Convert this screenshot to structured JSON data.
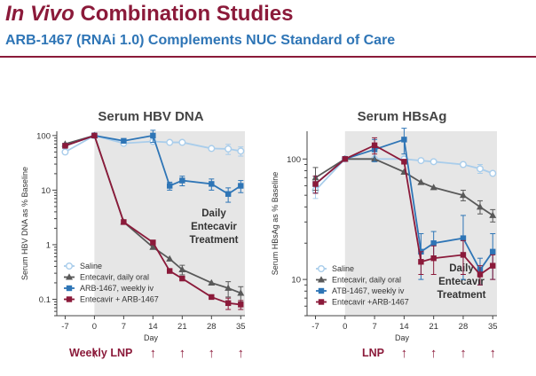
{
  "header": {
    "title_italic": "In Vivo",
    "title_rest": " Combination Studies",
    "subtitle": "ARB-1467 (RNAi 1.0) Complements NUC Standard of Care"
  },
  "colors": {
    "title": "#8B1A3A",
    "subtitle": "#2E75B6",
    "saline": "#A9CDEB",
    "entecavir": "#595959",
    "arb": "#2E75B6",
    "combo": "#8B1A3A",
    "treatment_shade": "#E6E6E6"
  },
  "dosing": [
    {
      "label": "Weekly LNP",
      "arrow": "↑",
      "days": [
        0,
        14,
        21,
        28,
        35
      ]
    },
    {
      "label": "LNP",
      "arrow": "↑",
      "days": [
        14,
        21,
        28,
        35
      ]
    }
  ],
  "chart_data": [
    {
      "type": "line",
      "title": "Serum HBV DNA",
      "xlabel": "Day",
      "ylabel": "Serum HBV DNA as % Baseline",
      "x_ticks": [
        -7,
        0,
        7,
        14,
        21,
        28,
        35
      ],
      "xlim": [
        -9,
        36
      ],
      "y_scale": "log",
      "y_ticks": [
        0.1,
        1,
        10,
        100
      ],
      "y_tick_labels": [
        "0.1",
        "1",
        "10",
        "100"
      ],
      "ylim": [
        0.05,
        120
      ],
      "shaded_region": {
        "x_from": 0,
        "x_to": 36
      },
      "annotation": [
        "Daily",
        "Entecavir",
        "Treatment"
      ],
      "legend": "bottom-left",
      "series": [
        {
          "name": "Saline",
          "color_key": "saline",
          "marker": "circle-open",
          "x": [
            -7,
            0,
            7,
            14,
            18,
            21,
            28,
            32,
            35
          ],
          "y": [
            50,
            100,
            72,
            78,
            75,
            75,
            58,
            57,
            52
          ],
          "err": [
            0,
            0,
            0,
            0,
            0,
            0,
            0,
            12,
            10
          ]
        },
        {
          "name": "Entecavir, daily oral",
          "color_key": "entecavir",
          "marker": "triangle",
          "x": [
            -7,
            0,
            7,
            14,
            18,
            21,
            28,
            32,
            35
          ],
          "y": [
            70,
            100,
            2.6,
            0.9,
            0.55,
            0.35,
            0.2,
            0.16,
            0.13
          ],
          "err": [
            0,
            0,
            0,
            0,
            0,
            0.07,
            0,
            0.05,
            0.04
          ]
        },
        {
          "name": "ARB-1467, weekly iv",
          "color_key": "arb",
          "marker": "square",
          "x": [
            -7,
            0,
            7,
            14,
            18,
            21,
            28,
            32,
            35
          ],
          "y": [
            65,
            100,
            80,
            100,
            12,
            15,
            13,
            8.5,
            12
          ],
          "err": [
            0,
            0,
            0,
            25,
            2,
            3,
            3,
            2.5,
            3
          ]
        },
        {
          "name": "Entecavir + ARB-1467",
          "color_key": "combo",
          "marker": "square",
          "x": [
            -7,
            0,
            7,
            14,
            18,
            21,
            28,
            32,
            35
          ],
          "y": [
            65,
            100,
            2.6,
            1.1,
            0.33,
            0.24,
            0.11,
            0.085,
            0.08
          ],
          "err": [
            0,
            0,
            0,
            0,
            0,
            0,
            0,
            0.02,
            0.015
          ]
        }
      ]
    },
    {
      "type": "line",
      "title": "Serum HBsAg",
      "xlabel": "Day",
      "ylabel": "Serum HBsAg as % Baseline",
      "x_ticks": [
        -7,
        0,
        7,
        14,
        21,
        28,
        35
      ],
      "xlim": [
        -9,
        36
      ],
      "y_scale": "log",
      "y_ticks": [
        10,
        100
      ],
      "y_tick_labels": [
        "10",
        "100"
      ],
      "ylim": [
        5,
        170
      ],
      "shaded_region": {
        "x_from": 0,
        "x_to": 36
      },
      "annotation": [
        "Daily",
        "Entecavir",
        "Treatment"
      ],
      "legend": "bottom-left",
      "series": [
        {
          "name": "Saline",
          "color_key": "saline",
          "marker": "circle-open",
          "x": [
            -7,
            0,
            7,
            14,
            18,
            21,
            28,
            32,
            35
          ],
          "y": [
            55,
            100,
            100,
            100,
            97,
            95,
            90,
            83,
            76
          ],
          "err": [
            8,
            0,
            0,
            0,
            0,
            0,
            0,
            7,
            0
          ]
        },
        {
          "name": "Entecavir, daily oral",
          "color_key": "entecavir",
          "marker": "triangle",
          "x": [
            -7,
            0,
            7,
            14,
            18,
            21,
            28,
            32,
            35
          ],
          "y": [
            70,
            100,
            100,
            78,
            64,
            58,
            50,
            40,
            34
          ],
          "err": [
            15,
            0,
            0,
            0,
            0,
            0,
            5,
            5,
            4
          ]
        },
        {
          "name": "ATB-1467, weekly iv",
          "color_key": "arb",
          "marker": "square",
          "x": [
            -7,
            0,
            7,
            14,
            18,
            21,
            28,
            32,
            35
          ],
          "y": [
            62,
            100,
            120,
            145,
            17,
            20,
            22,
            12,
            17
          ],
          "err": [
            10,
            0,
            25,
            35,
            7,
            5,
            12,
            3,
            7
          ]
        },
        {
          "name": "Entecavir +ARB-1467",
          "color_key": "combo",
          "marker": "square",
          "x": [
            -7,
            0,
            7,
            14,
            18,
            21,
            28,
            32,
            35
          ],
          "y": [
            62,
            100,
            130,
            95,
            14,
            15,
            16,
            11,
            13
          ],
          "err": [
            10,
            0,
            20,
            0,
            3,
            4,
            5,
            2,
            3
          ]
        }
      ]
    }
  ]
}
